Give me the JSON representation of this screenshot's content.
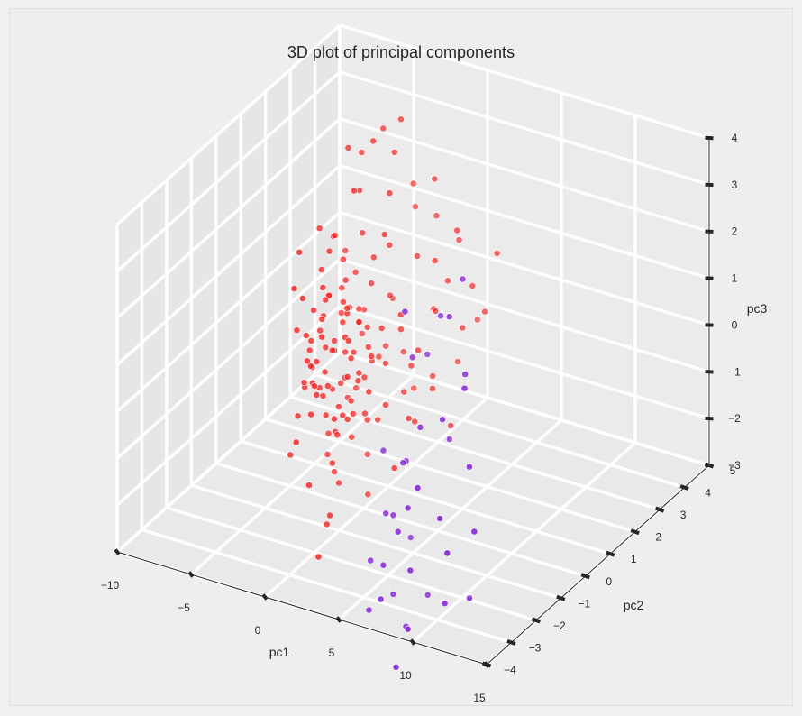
{
  "chart_data": {
    "type": "scatter",
    "projection": "3d",
    "title": "3D plot of principal components",
    "xlabel": "pc1",
    "ylabel": "pc2",
    "zlabel": "pc3",
    "xlim": [
      -10,
      15
    ],
    "ylim": [
      -4,
      5
    ],
    "zlim": [
      -3,
      4
    ],
    "xticks": [
      -10,
      -5,
      0,
      5,
      10,
      15
    ],
    "yticks": [
      -4,
      -3,
      -2,
      -1,
      0,
      1,
      2,
      3,
      4,
      5
    ],
    "zticks": [
      -3,
      -2,
      -1,
      0,
      1,
      2,
      3,
      4
    ],
    "grid": true,
    "legend": "none",
    "colors": {
      "cluster_a": "#ff1a1a",
      "cluster_b": "#8a2be2",
      "pane": "#e8e8e8",
      "grid": "#ffffff",
      "axis": "#262626"
    },
    "series": [
      {
        "color": "#ff1a1a",
        "points": [
          [
            -2.5,
            0.3,
            0.2
          ],
          [
            -2.1,
            0.5,
            -0.1
          ],
          [
            -1.8,
            -0.2,
            0.3
          ],
          [
            -2.8,
            0.1,
            -0.4
          ],
          [
            -1.5,
            0.7,
            0.5
          ],
          [
            -3.0,
            -0.5,
            0.1
          ],
          [
            -2.2,
            0.9,
            -0.3
          ],
          [
            -1.2,
            0.2,
            0.0
          ],
          [
            -3.4,
            0.4,
            0.6
          ],
          [
            -2.0,
            -0.8,
            -0.2
          ],
          [
            -1.6,
            1.1,
            0.2
          ],
          [
            -2.6,
            -0.1,
            -0.8
          ],
          [
            -0.9,
            0.3,
            -0.5
          ],
          [
            -3.2,
            1.0,
            0.4
          ],
          [
            -2.4,
            0.6,
            0.9
          ],
          [
            -1.9,
            -0.4,
            -1.0
          ],
          [
            -1.3,
            0.8,
            -0.7
          ],
          [
            -2.9,
            -0.6,
            0.7
          ],
          [
            -3.6,
            0.0,
            -0.3
          ],
          [
            -1.1,
            -0.1,
            0.6
          ],
          [
            -2.3,
            1.3,
            -0.1
          ],
          [
            -0.7,
            0.6,
            0.1
          ],
          [
            -2.7,
            0.2,
            1.2
          ],
          [
            -1.7,
            -0.9,
            0.4
          ],
          [
            -3.3,
            0.7,
            -1.1
          ],
          [
            -1.4,
            0.4,
            -1.3
          ],
          [
            -2.1,
            -0.3,
            1.4
          ],
          [
            -3.8,
            0.5,
            0.2
          ],
          [
            -0.5,
            0.1,
            -0.2
          ],
          [
            -2.5,
            1.5,
            0.3
          ],
          [
            -1.0,
            -0.6,
            -0.9
          ],
          [
            -3.0,
            0.9,
            1.0
          ],
          [
            -1.8,
            0.0,
            -1.6
          ],
          [
            -2.2,
            -1.1,
            0.0
          ],
          [
            -0.3,
            0.9,
            0.4
          ],
          [
            -2.6,
            0.4,
            -1.8
          ],
          [
            -1.5,
            1.2,
            1.1
          ],
          [
            -3.5,
            -0.3,
            -0.6
          ],
          [
            -0.8,
            -0.2,
            1.3
          ],
          [
            -2.0,
            0.7,
            -2.0
          ],
          [
            -4.0,
            0.2,
            -0.1
          ],
          [
            -1.2,
            1.6,
            -0.4
          ],
          [
            -2.8,
            -0.8,
            1.6
          ],
          [
            -0.6,
            0.5,
            -1.4
          ],
          [
            -3.1,
            1.2,
            -1.5
          ],
          [
            -1.9,
            0.3,
            2.0
          ],
          [
            0.0,
            0.2,
            -0.6
          ],
          [
            -2.4,
            -1.3,
            -1.2
          ],
          [
            -1.0,
            1.0,
            1.8
          ],
          [
            -3.7,
            0.8,
            0.8
          ],
          [
            -0.2,
            -0.5,
            0.8
          ],
          [
            -2.3,
            0.1,
            -2.3
          ],
          [
            -1.6,
            -0.7,
            1.9
          ],
          [
            -4.2,
            -0.2,
            0.5
          ],
          [
            0.3,
            0.7,
            -0.2
          ],
          [
            -1.4,
            1.4,
            -1.9
          ],
          [
            -2.9,
            0.5,
            2.3
          ],
          [
            -0.4,
            1.3,
            0.9
          ],
          [
            -3.3,
            -1.0,
            -1.7
          ],
          [
            0.5,
            0.0,
            0.3
          ],
          [
            -1.1,
            0.6,
            2.5
          ],
          [
            -2.0,
            1.8,
            -0.8
          ],
          [
            -4.5,
            0.6,
            -0.7
          ],
          [
            0.8,
            0.4,
            -0.9
          ],
          [
            -1.7,
            -1.2,
            -2.1
          ],
          [
            -0.9,
            1.7,
            0.6
          ],
          [
            -3.0,
            0.0,
            2.7
          ],
          [
            1.0,
            0.9,
            0.5
          ],
          [
            -2.5,
            0.3,
            -2.6
          ],
          [
            -1.3,
            -0.4,
            2.9
          ],
          [
            0.2,
            1.5,
            -1.2
          ],
          [
            -3.6,
            1.4,
            1.5
          ],
          [
            1.5,
            0.6,
            1.0
          ],
          [
            -0.5,
            1.9,
            -0.6
          ],
          [
            -2.2,
            -1.5,
            2.2
          ],
          [
            1.2,
            1.2,
            -0.4
          ],
          [
            -1.8,
            0.9,
            3.2
          ],
          [
            2.0,
            1.0,
            0.1
          ],
          [
            -0.1,
            1.1,
            2.1
          ],
          [
            -2.7,
            0.6,
            -3.0
          ],
          [
            2.5,
            1.4,
            0.8
          ],
          [
            0.6,
            1.8,
            1.6
          ],
          [
            -1.0,
            0.2,
            3.6
          ],
          [
            1.8,
            1.7,
            -0.8
          ],
          [
            -3.9,
            0.9,
            -2.2
          ],
          [
            3.0,
            1.6,
            1.4
          ],
          [
            0.9,
            0.3,
            2.8
          ],
          [
            -0.8,
            -0.9,
            -2.8
          ],
          [
            2.2,
            0.5,
            -1.1
          ],
          [
            -2.0,
            1.1,
            3.9
          ],
          [
            3.5,
            1.9,
            0.3
          ],
          [
            1.4,
            2.1,
            2.4
          ],
          [
            -1.5,
            -0.6,
            -3.2
          ],
          [
            0.4,
            0.8,
            3.4
          ],
          [
            2.8,
            1.2,
            2.0
          ],
          [
            -0.3,
            2.2,
            -1.5
          ],
          [
            4.0,
            2.0,
            1.2
          ],
          [
            -1.2,
            1.5,
            4.3
          ],
          [
            1.9,
            0.1,
            -2.0
          ],
          [
            -2.6,
            1.7,
            -2.9
          ],
          [
            0.7,
            2.4,
            0.2
          ],
          [
            3.3,
            0.8,
            -0.5
          ],
          [
            -0.6,
            1.6,
            3.8
          ],
          [
            2.6,
            2.3,
            1.9
          ],
          [
            -3.2,
            -0.7,
            2.5
          ],
          [
            1.1,
            1.4,
            -1.7
          ],
          [
            4.5,
            2.2,
            0.6
          ],
          [
            -1.9,
            1.3,
            -3.5
          ],
          [
            0.0,
            2.0,
            3.0
          ],
          [
            3.8,
            1.5,
            2.6
          ],
          [
            -0.2,
            0.5,
            4.6
          ],
          [
            2.0,
            2.6,
            -0.9
          ],
          [
            -2.4,
            0.8,
            4.1
          ],
          [
            5.0,
            2.4,
            1.8
          ],
          [
            1.6,
            1.9,
            3.3
          ],
          [
            -1.4,
            -1.0,
            -3.7
          ],
          [
            3.0,
            2.8,
            0.0
          ],
          [
            0.5,
            1.2,
            4.8
          ],
          [
            4.2,
            1.0,
            -1.3
          ],
          [
            -0.7,
            2.5,
            2.2
          ],
          [
            -2.8,
            -0.4,
            -0.4
          ],
          [
            -1.9,
            0.2,
            -0.6
          ],
          [
            -2.3,
            0.8,
            0.7
          ],
          [
            -1.6,
            -0.5,
            -0.3
          ],
          [
            -3.1,
            0.3,
            0.0
          ],
          [
            -2.0,
            1.0,
            0.6
          ],
          [
            -1.2,
            -0.3,
            -0.8
          ],
          [
            -2.5,
            -0.2,
            0.9
          ],
          [
            -1.7,
            0.5,
            -1.1
          ],
          [
            -3.4,
            -0.1,
            0.3
          ],
          [
            -2.1,
            0.4,
            -1.4
          ],
          [
            -1.0,
            0.4,
            0.7
          ],
          [
            -2.8,
            0.9,
            -0.9
          ],
          [
            -1.5,
            -0.8,
            0.9
          ],
          [
            -3.0,
            0.6,
            -0.2
          ],
          [
            -2.2,
            -0.6,
            -0.5
          ],
          [
            -1.3,
            0.1,
            1.0
          ],
          [
            -2.6,
            0.7,
            0.4
          ],
          [
            -1.9,
            -1.0,
            -0.7
          ],
          [
            -3.5,
            0.3,
            -0.9
          ],
          [
            -2.4,
            1.1,
            1.3
          ],
          [
            -1.1,
            0.0,
            -1.2
          ],
          [
            -2.9,
            -0.3,
            1.1
          ],
          [
            -0.8,
            0.8,
            -0.3
          ],
          [
            -3.2,
            0.2,
            1.7
          ],
          [
            -1.6,
            1.0,
            -1.6
          ],
          [
            -2.0,
            -0.2,
            2.4
          ],
          [
            -3.8,
            -0.4,
            -1.2
          ],
          [
            -0.6,
            -0.3,
            -0.1
          ],
          [
            -2.7,
            1.3,
            -1.3
          ],
          [
            -1.4,
            0.1,
            1.7
          ],
          [
            -3.3,
            0.5,
            -2.4
          ]
        ]
      },
      {
        "color": "#8a2be2",
        "points": [
          [
            3.0,
            -1.0,
            -1.0
          ],
          [
            4.5,
            -1.5,
            -2.0
          ],
          [
            6.0,
            -2.0,
            -0.5
          ],
          [
            5.5,
            -2.5,
            -2.5
          ],
          [
            7.0,
            -2.8,
            -1.5
          ],
          [
            4.0,
            -0.5,
            -3.0
          ],
          [
            8.0,
            -3.0,
            -0.8
          ],
          [
            6.5,
            -3.2,
            -2.8
          ],
          [
            9.0,
            -3.5,
            -1.8
          ],
          [
            5.0,
            -1.8,
            -3.5
          ],
          [
            7.5,
            -2.2,
            0.5
          ],
          [
            10.0,
            -3.8,
            0.2
          ],
          [
            3.5,
            -1.2,
            -2.2
          ],
          [
            8.5,
            -3.3,
            -3.2
          ],
          [
            6.0,
            -1.0,
            -3.8
          ],
          [
            11.0,
            -3.5,
            -0.5
          ],
          [
            4.2,
            -0.8,
            -1.2
          ],
          [
            9.5,
            -2.5,
            1.0
          ],
          [
            12.0,
            -3.8,
            -1.0
          ],
          [
            5.8,
            -1.5,
            1.5
          ],
          [
            7.2,
            -2.6,
            -3.6
          ],
          [
            3.8,
            -2.0,
            -2.8
          ],
          [
            13.0,
            -3.5,
            0.8
          ],
          [
            8.8,
            -1.8,
            2.8
          ],
          [
            6.8,
            -2.4,
            3.0
          ],
          [
            10.5,
            -3.0,
            -2.6
          ],
          [
            9.2,
            -1.5,
            3.5
          ],
          [
            11.5,
            -2.8,
            2.0
          ],
          [
            7.8,
            -1.2,
            -0.2
          ],
          [
            14.0,
            -3.9,
            -0.3
          ],
          [
            4.8,
            -0.3,
            0.9
          ],
          [
            12.5,
            -3.2,
            -2.2
          ],
          [
            10.2,
            -2.0,
            1.8
          ],
          [
            8.2,
            -3.6,
            -3.9
          ],
          [
            5.2,
            -2.9,
            -3.3
          ],
          [
            6.2,
            -0.6,
            2.0
          ]
        ]
      }
    ]
  }
}
